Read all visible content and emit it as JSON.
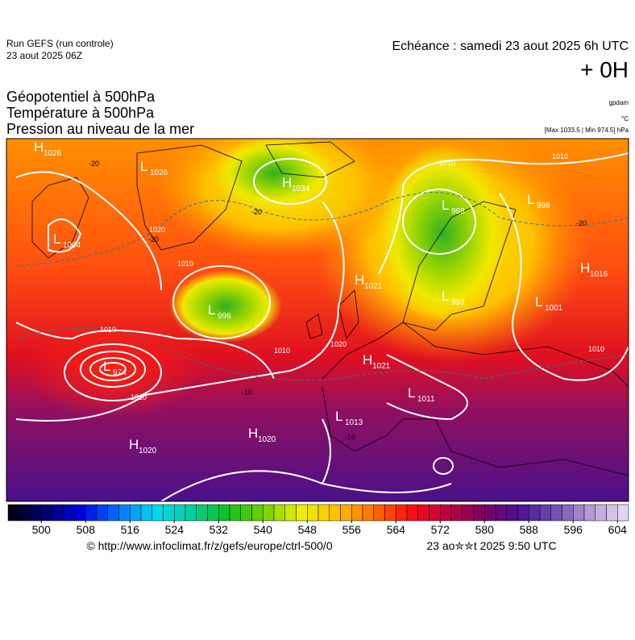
{
  "header": {
    "run": "Run GEFS (run controle)",
    "run_date": "23 aout 2025 06Z",
    "valid": "Echéance : samedi 23 aout 2025 6h UTC",
    "lead": "+ 0H"
  },
  "titles": [
    "Géopotentiel à 500hPa",
    "Température à 500hPa",
    "Pression au niveau de la mer"
  ],
  "units": {
    "geopotential": "gpdam",
    "temperature": "°C",
    "pressure": "[Max 1033.5 | Min 974.5] hPa"
  },
  "map": {
    "centers": [
      {
        "letter": "H",
        "value": "1026"
      },
      {
        "letter": "L",
        "value": "1026"
      },
      {
        "letter": "L",
        "value": "1004"
      },
      {
        "letter": "H",
        "value": "1034"
      },
      {
        "letter": "L",
        "value": "996"
      },
      {
        "letter": "L",
        "value": "974"
      },
      {
        "letter": "H",
        "value": "1021"
      },
      {
        "letter": "H",
        "value": "1021"
      },
      {
        "letter": "L",
        "value": "1011"
      },
      {
        "letter": "L",
        "value": "1013"
      },
      {
        "letter": "H",
        "value": "1020"
      },
      {
        "letter": "H",
        "value": "1020"
      },
      {
        "letter": "L",
        "value": "998"
      },
      {
        "letter": "L",
        "value": "993"
      },
      {
        "letter": "L",
        "value": "1001"
      },
      {
        "letter": "H",
        "value": "1016"
      },
      {
        "letter": "L",
        "value": "998"
      }
    ],
    "isobar_labels": [
      "1020",
      "1010",
      "1010",
      "1010",
      "1010",
      "1020",
      "1010",
      "1010",
      "1010"
    ],
    "temperature_labels": [
      "-20",
      "-20",
      "-20",
      "-10",
      "-10",
      "-20"
    ]
  },
  "colorbar": {
    "clim": [
      494,
      606
    ],
    "step": 2,
    "ticks": [
      500,
      508,
      516,
      524,
      532,
      540,
      548,
      556,
      564,
      572,
      580,
      588,
      596,
      604
    ],
    "colors": [
      "#000010",
      "#00006a",
      "#0000e0",
      "#0070ff",
      "#00d8f0",
      "#00d0a0",
      "#10c020",
      "#70d000",
      "#f0f000",
      "#ffc000",
      "#ff7000",
      "#ff1010",
      "#c00040",
      "#800060",
      "#4a1090",
      "#7050b0",
      "#b8a0d8",
      "#e8e0f4"
    ]
  },
  "footer": {
    "source": "© http://www.infoclimat.fr/z/gefs/europe/ctrl-500/0",
    "stamp": "23 ao✮✮t 2025  9:50 UTC"
  }
}
